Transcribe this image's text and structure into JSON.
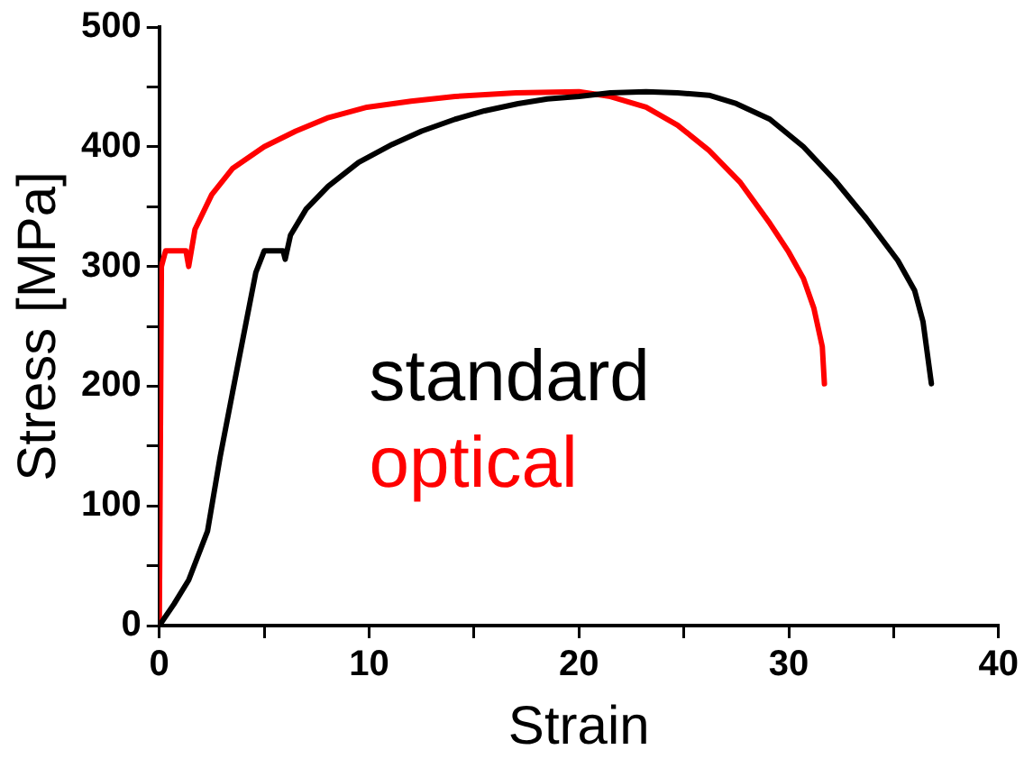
{
  "chart_data": {
    "type": "line",
    "xlabel": "Strain",
    "ylabel": "Stress [MPa]",
    "xlim": [
      0,
      40
    ],
    "ylim": [
      0,
      500
    ],
    "xticks": [
      0,
      {
        "value": 5,
        "label": null
      },
      10,
      {
        "value": 15,
        "label": null
      },
      20,
      {
        "value": 25,
        "label": null
      },
      30,
      {
        "value": 35,
        "label": null
      },
      40
    ],
    "yticks": [
      0,
      {
        "value": 50,
        "label": null
      },
      100,
      {
        "value": 150,
        "label": null
      },
      200,
      {
        "value": 250,
        "label": null
      },
      300,
      {
        "value": 350,
        "label": null
      },
      400,
      {
        "value": 450,
        "label": null
      },
      500
    ],
    "grid": false,
    "legend": "center",
    "marker": "none",
    "line_style": "solid",
    "series": [
      {
        "name": "standard",
        "color": "#000000",
        "x": [
          0,
          0.7,
          1.4,
          2.3,
          2.9,
          3.8,
          4.6,
          5.0,
          5.5,
          5.9,
          6.0,
          6.25,
          7,
          8.05,
          9.5,
          11.1,
          12.5,
          14.1,
          15.5,
          17.1,
          18.5,
          20,
          21.5,
          23.2,
          24.7,
          26.2,
          27.5,
          29.1,
          30.7,
          32.2,
          33.7,
          35.2,
          36.0,
          36.4,
          36.8
        ],
        "values": [
          0,
          18,
          38,
          79,
          141,
          223,
          295,
          313,
          313,
          313,
          306,
          326,
          348,
          367,
          387,
          402,
          413,
          423,
          430,
          436,
          440,
          442,
          445,
          446,
          445,
          443,
          436,
          423,
          400,
          372,
          340,
          305,
          280,
          254,
          202
        ]
      },
      {
        "name": "optical",
        "color": "#ff0000",
        "x": [
          0,
          0.1,
          0.3,
          0.8,
          1.27,
          1.4,
          1.7,
          2.5,
          3.5,
          5,
          6.5,
          8,
          9.9,
          12,
          14.1,
          17,
          20,
          21.5,
          23.2,
          24.7,
          26.2,
          27.7,
          29.1,
          30,
          30.7,
          31.2,
          31.6,
          31.7
        ],
        "values": [
          0,
          300,
          313,
          313,
          313,
          300,
          331,
          360,
          382,
          400,
          413,
          424,
          433,
          438,
          442,
          445,
          446,
          442,
          433,
          418,
          397,
          370,
          336,
          312,
          290,
          265,
          233,
          202
        ]
      }
    ]
  }
}
